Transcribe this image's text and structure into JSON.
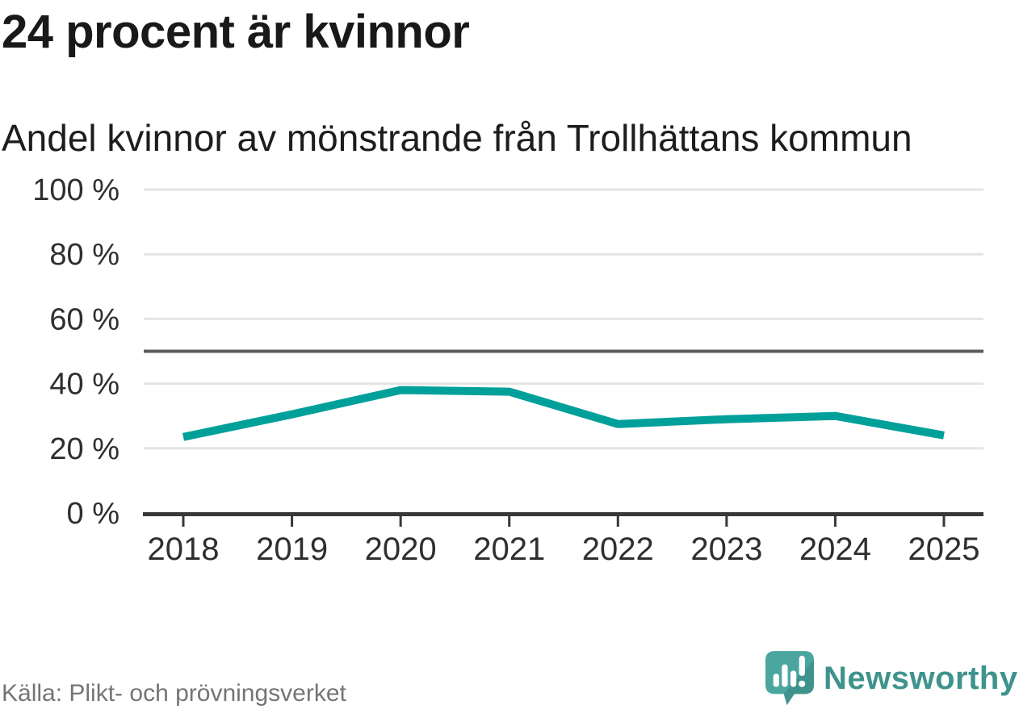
{
  "header": {
    "title": "24 procent är kvinnor",
    "subtitle": "Andel kvinnor av mönstrande från Trollhättans kommun"
  },
  "chart_data": {
    "type": "line",
    "x": [
      "2018",
      "2019",
      "2020",
      "2021",
      "2022",
      "2023",
      "2024",
      "2025"
    ],
    "series": [
      {
        "name": "Andel kvinnor av mönstrande",
        "values": [
          23.5,
          30.5,
          38,
          37.5,
          27.5,
          29,
          30,
          24
        ]
      }
    ],
    "title": "24 procent är kvinnor",
    "subtitle": "Andel kvinnor av mönstrande från Trollhättans kommun",
    "xlabel": "",
    "ylabel": "",
    "ylim": [
      0,
      100
    ],
    "yticks": [
      {
        "value": 0,
        "label": "0 %"
      },
      {
        "value": 20,
        "label": "20 %"
      },
      {
        "value": 40,
        "label": "40 %"
      },
      {
        "value": 60,
        "label": "60 %"
      },
      {
        "value": 80,
        "label": "80 %"
      },
      {
        "value": 100,
        "label": "100 %"
      }
    ],
    "reference_line": {
      "value": 50
    },
    "grid": true,
    "legend": "none",
    "line_color": "#00a09a",
    "grid_color": "#e4e4e4",
    "reference_color": "#5b5b5b",
    "axis_color": "#383838",
    "tick_label_color": "#2f2f2f"
  },
  "footer": {
    "source": "Källa: Plikt- och prövningsverket",
    "brand": "Newsworthy"
  },
  "logo": {
    "bubble_color": "#4ba69f",
    "bubble_shade_color": "#3f938d",
    "glyph_color": "#ffffff"
  }
}
